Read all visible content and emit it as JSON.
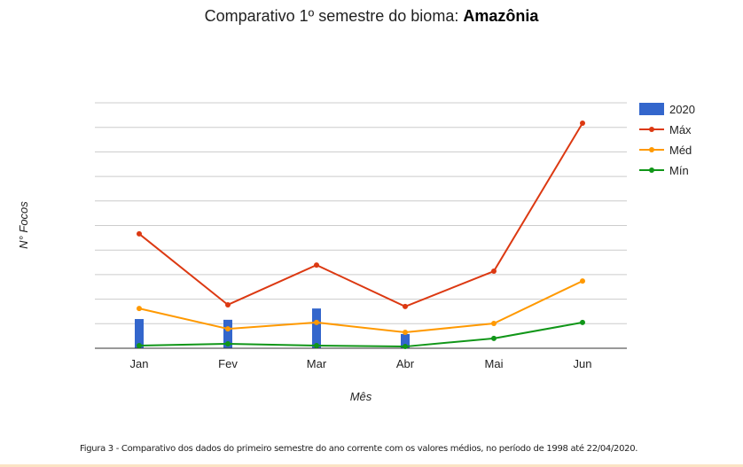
{
  "chart_data": {
    "type": "bar+line",
    "title_prefix": "Comparativo 1º semestre do bioma: ",
    "title_bold": "Amazônia",
    "xlabel": "Mês",
    "ylabel": "N° Focos",
    "categories": [
      "Jan",
      "Fev",
      "Mar",
      "Abr",
      "Mai",
      "Jun"
    ],
    "ylim": [
      0,
      10
    ],
    "grid": true,
    "legend_position": "right",
    "series": [
      {
        "name": "2020",
        "kind": "bar",
        "color": "#3366cc",
        "values": [
          1.19,
          1.16,
          1.62,
          0.58,
          null,
          null
        ]
      },
      {
        "name": "Máx",
        "kind": "line",
        "color": "#dc3912",
        "values": [
          4.66,
          1.77,
          3.39,
          1.7,
          3.14,
          9.17
        ]
      },
      {
        "name": "Méd",
        "kind": "line",
        "color": "#ff9900",
        "values": [
          1.62,
          0.79,
          1.05,
          0.65,
          1.01,
          2.74
        ]
      },
      {
        "name": "Mín",
        "kind": "line",
        "color": "#109618",
        "values": [
          0.11,
          0.18,
          0.11,
          0.07,
          0.4,
          1.05
        ]
      }
    ]
  },
  "caption": "Figura 3 - Comparativo dos dados do primeiro semestre do ano corrente com os valores médios, no período de 1998 até 22/04/2020."
}
